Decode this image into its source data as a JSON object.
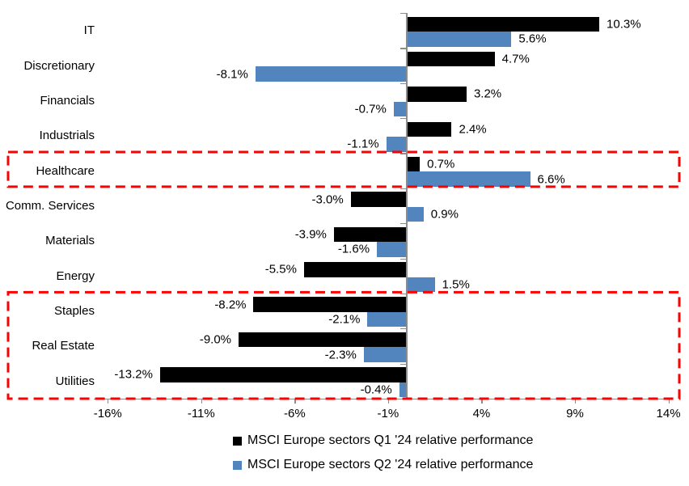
{
  "chart_data": {
    "type": "bar",
    "orientation": "horizontal",
    "title": "",
    "categories": [
      "IT",
      "Discretionary",
      "Financials",
      "Industrials",
      "Healthcare",
      "Comm. Services",
      "Materials",
      "Energy",
      "Staples",
      "Real Estate",
      "Utilities"
    ],
    "series": [
      {
        "name": "MSCI Europe sectors Q1 '24 relative performance",
        "color": "#000000",
        "values": [
          10.3,
          4.7,
          3.2,
          2.4,
          0.7,
          -3.0,
          -3.9,
          -5.5,
          -8.2,
          -9.0,
          -13.2
        ],
        "labels": [
          "10.3%",
          "4.7%",
          "3.2%",
          "2.4%",
          "0.7%",
          "-3.0%",
          "-3.9%",
          "-5.5%",
          "-8.2%",
          "-9.0%",
          "-13.2%"
        ]
      },
      {
        "name": "MSCI Europe sectors Q2 '24 relative performance",
        "color": "#5285BD",
        "values": [
          5.6,
          -8.1,
          -0.7,
          -1.1,
          6.6,
          0.9,
          -1.6,
          1.5,
          -2.1,
          -2.3,
          -0.4
        ],
        "labels": [
          "5.6%",
          "-8.1%",
          "-0.7%",
          "-1.1%",
          "6.6%",
          "0.9%",
          "-1.6%",
          "1.5%",
          "-2.1%",
          "-2.3%",
          "-0.4%"
        ]
      }
    ],
    "x_axis": {
      "tick_labels": [
        "-16%",
        "-11%",
        "-6%",
        "-1%",
        "4%",
        "9%",
        "14%"
      ],
      "tick_values": [
        -16,
        -11,
        -6,
        -1,
        4,
        9,
        14
      ],
      "min": -16.5,
      "max": 14.8
    },
    "legend_position": "bottom",
    "grid": false,
    "axis_color": "#8C8C8C",
    "highlights": [
      {
        "type": "dashed-box",
        "color": "#FF0000",
        "categories": [
          "Healthcare"
        ]
      },
      {
        "type": "dashed-box",
        "color": "#FF0000",
        "categories": [
          "Staples",
          "Real Estate",
          "Utilities"
        ]
      }
    ]
  }
}
